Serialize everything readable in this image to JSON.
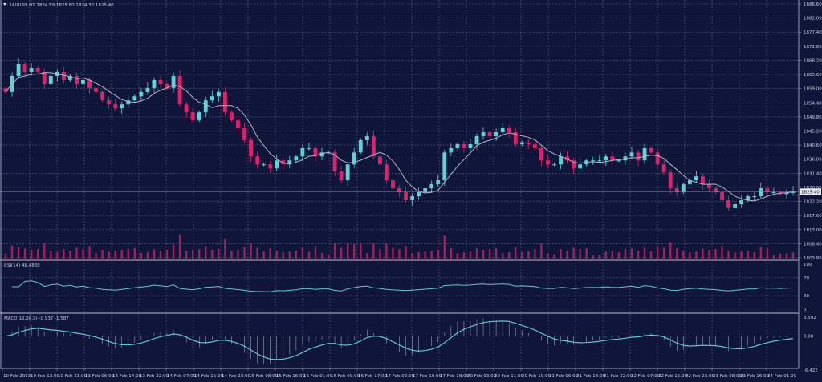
{
  "header": {
    "title": "XAUUSD,H1  1824.59 1825.80 1824.32 1825.40"
  },
  "colors": {
    "background": "#10153a",
    "up_candle": "#5fd3d6",
    "down_candle": "#e0216c",
    "moving_average": "#b4b4c4",
    "volume": "#a0205e",
    "indicator_line": "#5fc8d6",
    "grid": "#5a5f80"
  },
  "chart_data": [
    {
      "type": "candlestick",
      "title": "XAUUSD,H1  1824.59 1825.80 1824.32 1825.40",
      "y_ticks": [
        "1886.60",
        "1882.00",
        "1877.40",
        "1872.80",
        "1868.20",
        "1863.60",
        "1859.00",
        "1854.40",
        "1849.80",
        "1845.20",
        "1840.60",
        "1836.00",
        "1831.40",
        "1826.80",
        "1822.20",
        "1817.60",
        "1813.00",
        "1808.40",
        "1803.80"
      ],
      "ylim": [
        1803.8,
        1886.6
      ],
      "current_price": "1825.40",
      "x_ticks": [
        "10 Feb 2023",
        "10 Feb 13:00",
        "10 Feb 21:00",
        "13 Feb 06:00",
        "13 Feb 14:00",
        "13 Feb 22:00",
        "14 Feb 07:00",
        "14 Feb 15:00",
        "14 Feb 23:00",
        "15 Feb 08:00",
        "15 Feb 16:00",
        "16 Feb 01:00",
        "16 Feb 09:00",
        "16 Feb 17:00",
        "17 Feb 02:00",
        "17 Feb 10:00",
        "17 Feb 18:00",
        "20 Feb 03:00",
        "20 Feb 11:00",
        "20 Feb 19:00",
        "21 Feb 06:00",
        "21 Feb 14:00",
        "21 Feb 22:00",
        "22 Feb 07:00",
        "22 Feb 15:00",
        "22 Feb 23:00",
        "23 Feb 08:00",
        "23 Feb 16:00",
        "24 Feb 01:00"
      ],
      "closes": [
        1857.9,
        1863.1,
        1867.0,
        1864.4,
        1865.7,
        1864.4,
        1860.5,
        1863.1,
        1864.4,
        1861.8,
        1863.1,
        1860.5,
        1861.8,
        1859.2,
        1857.9,
        1855.2,
        1853.9,
        1852.6,
        1853.9,
        1855.2,
        1856.5,
        1857.9,
        1859.2,
        1861.8,
        1860.5,
        1859.2,
        1863.1,
        1853.9,
        1851.3,
        1848.7,
        1851.3,
        1855.2,
        1856.5,
        1857.9,
        1851.3,
        1848.7,
        1846.1,
        1842.2,
        1836.9,
        1834.3,
        1834.3,
        1833.0,
        1835.6,
        1834.3,
        1835.6,
        1836.9,
        1839.6,
        1839.6,
        1836.9,
        1838.2,
        1838.2,
        1832.0,
        1829.1,
        1834.3,
        1838.2,
        1842.2,
        1843.5,
        1836.9,
        1834.3,
        1829.1,
        1826.5,
        1825.2,
        1822.6,
        1823.9,
        1825.2,
        1826.5,
        1827.8,
        1829.1,
        1838.2,
        1839.6,
        1840.9,
        1839.6,
        1840.9,
        1843.5,
        1844.8,
        1843.5,
        1844.8,
        1846.1,
        1844.8,
        1840.9,
        1841.5,
        1840.9,
        1839.6,
        1835.6,
        1834.3,
        1834.3,
        1836.9,
        1835.6,
        1833.0,
        1834.3,
        1835.6,
        1835.6,
        1835.6,
        1836.9,
        1835.6,
        1835.6,
        1836.9,
        1838.2,
        1835.6,
        1839.6,
        1838.2,
        1834.3,
        1831.7,
        1826.5,
        1825.2,
        1827.8,
        1829.1,
        1830.4,
        1827.8,
        1826.5,
        1825.2,
        1822.6,
        1820.0,
        1821.3,
        1822.6,
        1823.9,
        1823.9,
        1826.5,
        1825.2,
        1825.2,
        1824.6,
        1825.0,
        1825.4
      ]
    },
    {
      "type": "line",
      "title": "RSI(14) 48.4839",
      "y_ticks": [
        "100",
        "70",
        "30",
        "0"
      ],
      "ylim": [
        0,
        100
      ]
    },
    {
      "type": "line",
      "title": "MACD(12,26,9) -0.937 -1.587",
      "y_ticks": [
        "3.592",
        "0.00",
        "-6.422"
      ],
      "ylim": [
        -6.422,
        3.592
      ]
    }
  ]
}
